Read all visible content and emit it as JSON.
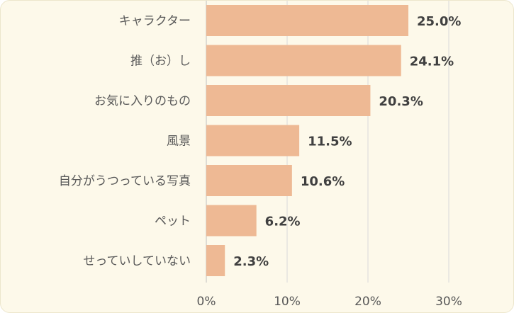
{
  "chart_data": {
    "type": "bar",
    "orientation": "horizontal",
    "categories": [
      "キャラクター",
      "推（お）し",
      "お気に入りのもの",
      "風景",
      "自分がうつっている写真",
      "ペット",
      "せっていしていない"
    ],
    "values": [
      25.0,
      24.1,
      20.3,
      11.5,
      10.6,
      6.2,
      2.3
    ],
    "value_labels": [
      "25.0%",
      "24.1%",
      "20.3%",
      "11.5%",
      "10.6%",
      "6.2%",
      "2.3%"
    ],
    "x_ticks": [
      0,
      10,
      20,
      30
    ],
    "x_tick_labels": [
      "0%",
      "10%",
      "20%",
      "30%"
    ],
    "xlim": [
      0,
      30
    ],
    "grid": true,
    "legend": "none",
    "colors": {
      "bar": "#eeb994",
      "grid": "#d9d9d9",
      "background": "#fdf9ea"
    }
  }
}
